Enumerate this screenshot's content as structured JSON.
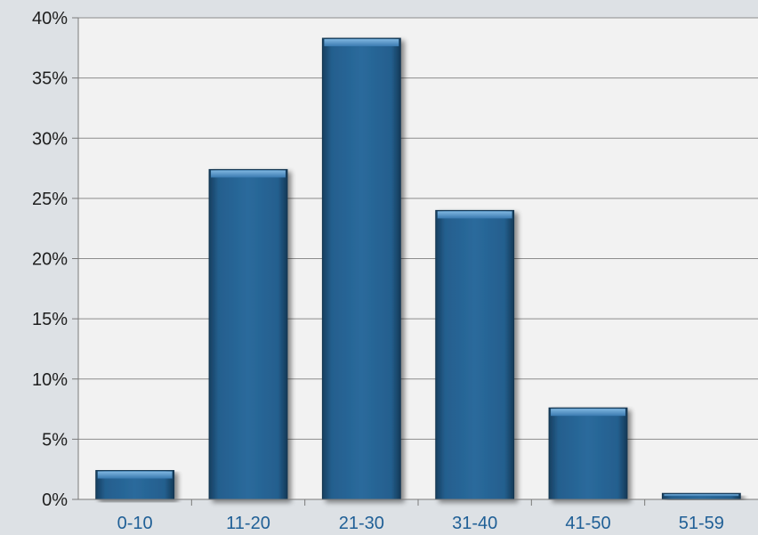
{
  "chart_data": {
    "type": "bar",
    "categories": [
      "0-10",
      "11-20",
      "21-30",
      "31-40",
      "41-50",
      "51-59"
    ],
    "values": [
      2.4,
      27.4,
      38.3,
      24.0,
      7.6,
      0.5
    ],
    "ylim": [
      0,
      40
    ],
    "y_ticks": [
      "0%",
      "5%",
      "10%",
      "15%",
      "20%",
      "25%",
      "30%",
      "35%",
      "40%"
    ],
    "grid": true,
    "legend": "none",
    "colors": {
      "bar": "#245f8e",
      "bar_highlight": "#4f93c8",
      "bar_dark": "#173f60",
      "plot_background": "#f2f2f2",
      "page_background": "#dde1e5",
      "gridline": "#8c8c8c",
      "x_label": "#1f5f96"
    }
  }
}
